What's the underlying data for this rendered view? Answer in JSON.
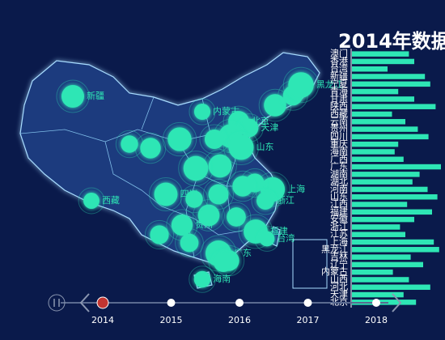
{
  "chart_data": {
    "type": "bar",
    "title": "2014年数据",
    "categories": [
      "北京",
      "天津",
      "河北",
      "山西",
      "内蒙古",
      "辽宁",
      "吉林",
      "黑龙江",
      "上海",
      "江苏",
      "浙江",
      "安徽",
      "福建",
      "江西",
      "山东",
      "河南",
      "湖北",
      "湖南",
      "广东",
      "广西",
      "海南",
      "重庆",
      "四川",
      "贵州",
      "云南",
      "西藏",
      "陕西",
      "甘肃",
      "青海",
      "宁夏",
      "新疆",
      "台湾",
      "香港",
      "澳门"
    ],
    "values": [
      72,
      58,
      88,
      64,
      46,
      80,
      66,
      98,
      92,
      60,
      54,
      70,
      90,
      62,
      96,
      85,
      68,
      76,
      100,
      58,
      48,
      52,
      86,
      74,
      60,
      45,
      94,
      70,
      52,
      88,
      82,
      40,
      70,
      64
    ],
    "xlim": [
      0,
      100
    ],
    "color": "#2ee6b5",
    "timeline": [
      "2014",
      "2015",
      "2016",
      "2017",
      "2018"
    ],
    "current": 0
  }
}
